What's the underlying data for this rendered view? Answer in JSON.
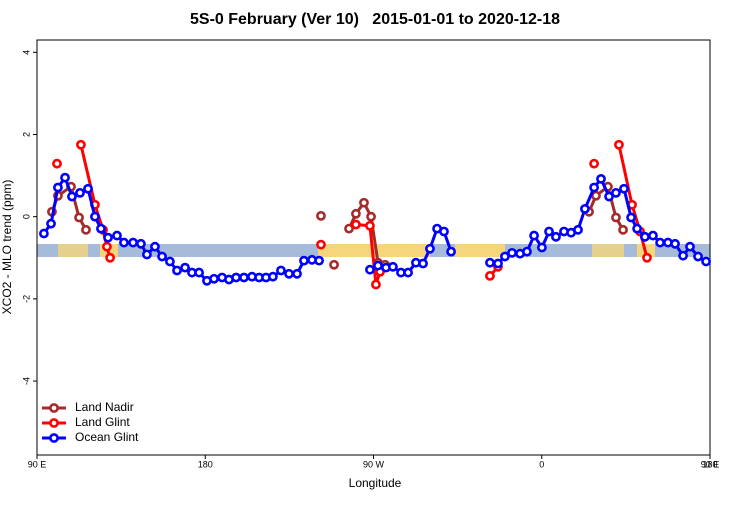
{
  "chart_data": {
    "type": "line",
    "title": "5S-0 February (Ver 10)   2015-01-01 to 2020-12-18",
    "x_label": "Longitude",
    "y_label": "XCO2 - MLO trend (ppm)",
    "xlim": [
      90,
      450
    ],
    "ylim": [
      -5.8,
      4.3
    ],
    "xticks": [
      {
        "value": 90,
        "label": "90 E"
      },
      180,
      {
        "value": 270,
        "label": "90 W"
      },
      {
        "value": 360,
        "label": "0"
      },
      {
        "value": 450,
        "label": "90 E"
      },
      {
        "value": 540,
        "label": "180"
      }
    ],
    "yticks": [
      -4,
      -2,
      0,
      2,
      4
    ],
    "legend": "bottom-left",
    "series": [
      {
        "name": "Land Nadir",
        "color": "#a52a2a",
        "x": [
          98.0,
          101.2,
          108.2,
          112.5,
          116.2,
          null,
          241.9,
          null,
          248.9,
          null,
          256.9,
          260.6,
          264.9,
          268.7,
          272.4,
          276.2,
          null,
          385.3,
          389.0,
          395.4,
          399.7,
          403.5
        ],
        "values": [
          0.12,
          0.51,
          0.73,
          -0.02,
          -0.32,
          null,
          0.02,
          null,
          -1.17,
          null,
          -0.29,
          0.07,
          0.34,
          0,
          -1.12,
          -1.17,
          null,
          0.12,
          0.51,
          0.73,
          -0.02,
          -0.32
        ]
      },
      {
        "name": "Land Glint",
        "color": "#ff0000",
        "x": [
          100.7,
          null,
          113.5,
          121.0,
          125.3,
          127.4,
          129.1,
          null,
          241.9,
          null,
          260.6,
          268.1,
          271.3,
          273.5,
          null,
          332.3,
          336.6,
          null,
          388.0,
          null,
          401.3,
          408.3,
          412.6,
          416.3
        ],
        "values": [
          1.29,
          null,
          1.75,
          0.29,
          -0.32,
          -0.73,
          -1.0,
          null,
          -0.68,
          null,
          -0.19,
          -0.22,
          -1.65,
          -1.34,
          null,
          -1.44,
          -1.22,
          null,
          1.29,
          null,
          1.75,
          0.29,
          -0.36,
          -1.0
        ]
      },
      {
        "name": "Ocean Glint",
        "color": "#0000ff",
        "x": [
          93.7,
          97.5,
          101.2,
          105.0,
          108.7,
          113.0,
          117.3,
          121.0,
          124.2,
          128.0,
          132.8,
          136.5,
          141.4,
          145.6,
          148.8,
          153.1,
          156.9,
          161.1,
          164.9,
          169.2,
          172.9,
          176.7,
          180.9,
          184.7,
          189.0,
          192.7,
          196.5,
          200.7,
          205.0,
          208.8,
          212.5,
          216.2,
          220.5,
          224.8,
          229.1,
          232.8,
          237.1,
          240.9,
          null,
          268.1,
          272.4,
          276.7,
          280.4,
          284.7,
          288.5,
          292.7,
          296.5,
          300.2,
          304.0,
          307.7,
          311.5,
          null,
          332.3,
          336.6,
          340.3,
          344.1,
          348.4,
          352.1,
          355.9,
          360.1,
          363.9,
          367.6,
          371.9,
          375.7,
          379.4,
          383.1,
          388.0,
          391.7,
          396.0,
          399.7,
          404.0,
          407.8,
          411.0,
          415.2,
          419.5,
          423.3,
          427.5,
          431.3,
          435.6,
          439.3,
          443.6,
          447.9
        ],
        "values": [
          -0.41,
          -0.17,
          0.71,
          0.95,
          0.49,
          0.58,
          0.68,
          0,
          -0.29,
          -0.51,
          -0.46,
          -0.63,
          -0.63,
          -0.66,
          -0.92,
          -0.73,
          -0.97,
          -1.09,
          -1.31,
          -1.24,
          -1.36,
          -1.36,
          -1.56,
          -1.51,
          -1.48,
          -1.53,
          -1.48,
          -1.48,
          -1.46,
          -1.48,
          -1.48,
          -1.46,
          -1.31,
          -1.39,
          -1.39,
          -1.07,
          -1.05,
          -1.07,
          null,
          -1.29,
          -1.19,
          -1.24,
          -1.22,
          -1.36,
          -1.36,
          -1.12,
          -1.14,
          -0.78,
          -0.29,
          -0.36,
          -0.85,
          null,
          -1.12,
          -1.14,
          -0.97,
          -0.88,
          -0.9,
          -0.85,
          -0.46,
          -0.75,
          -0.36,
          -0.49,
          -0.36,
          -0.39,
          -0.32,
          0.19,
          0.71,
          0.92,
          0.49,
          0.58,
          0.68,
          -0.02,
          -0.29,
          -0.49,
          -0.46,
          -0.63,
          -0.63,
          -0.66,
          -0.95,
          -0.73,
          -0.97,
          -1.09
        ]
      }
    ]
  }
}
